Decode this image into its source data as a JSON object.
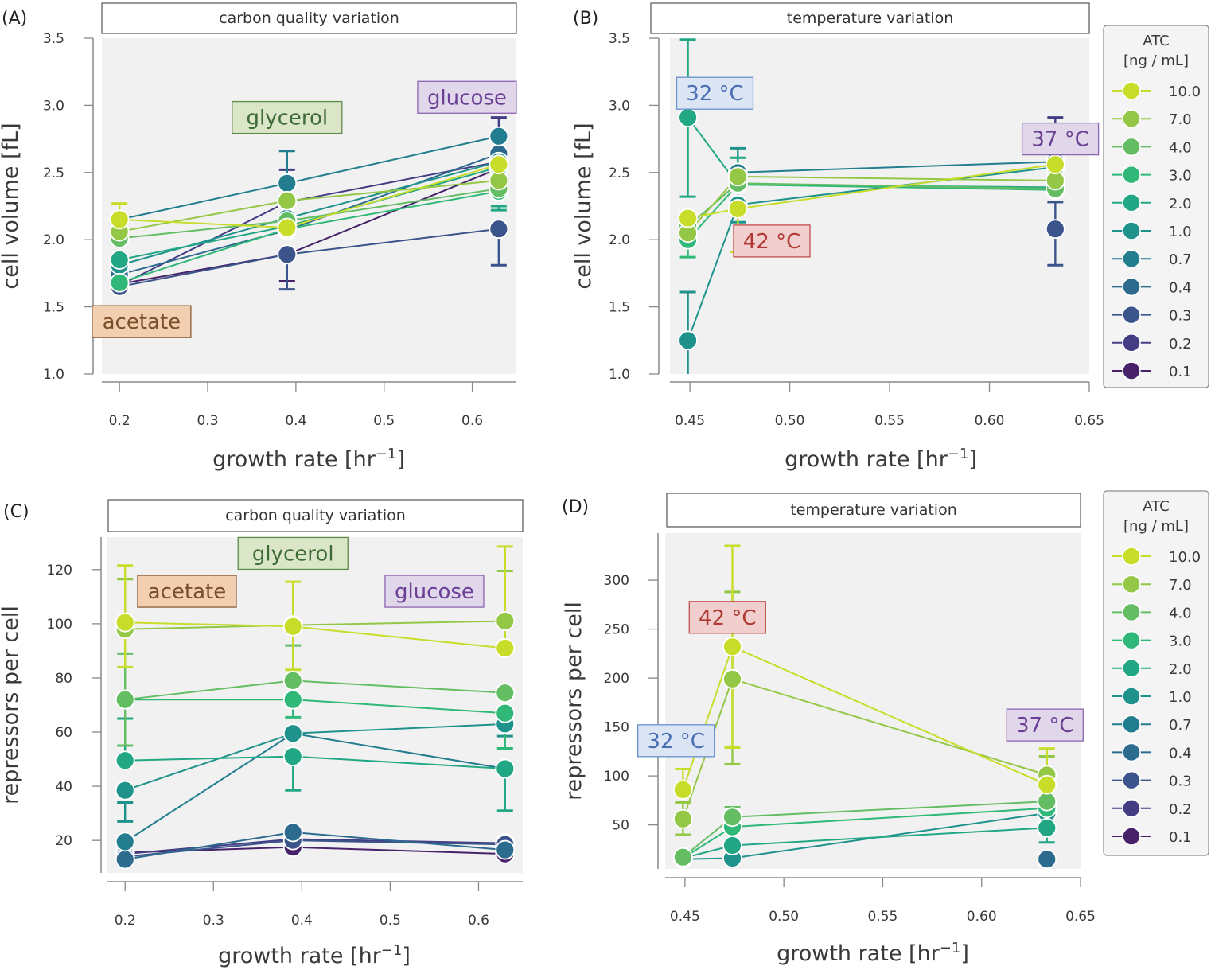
{
  "figure": {
    "legend": {
      "title_line1": "ATC",
      "title_line2": "[ng / mL]",
      "entries": [
        {
          "label": "10.0",
          "color": "#c8dc2a"
        },
        {
          "label": "7.0",
          "color": "#93c745"
        },
        {
          "label": "4.0",
          "color": "#65bd63"
        },
        {
          "label": "3.0",
          "color": "#30b878"
        },
        {
          "label": "2.0",
          "color": "#22a784"
        },
        {
          "label": "1.0",
          "color": "#1f928c"
        },
        {
          "label": "0.7",
          "color": "#227e8e"
        },
        {
          "label": "0.4",
          "color": "#2c6a8e"
        },
        {
          "label": "0.3",
          "color": "#3b548c"
        },
        {
          "label": "0.2",
          "color": "#433d84"
        },
        {
          "label": "0.1",
          "color": "#472269"
        }
      ]
    }
  },
  "chart_data": [
    {
      "panel": "(A)",
      "type": "line",
      "title": "carbon quality variation",
      "xlabel": "growth rate [hr⁻¹]",
      "ylabel": "cell volume [fL]",
      "xlim": [
        0.18,
        0.65
      ],
      "ylim": [
        1.0,
        3.5
      ],
      "xticks": [
        "0.2",
        "0.3",
        "0.4",
        "0.5",
        "0.6"
      ],
      "xtick_values": [
        0.2,
        0.3,
        0.4,
        0.5,
        0.6
      ],
      "yticks": [
        "1.0",
        "1.5",
        "2.0",
        "2.5",
        "3.0",
        "3.5"
      ],
      "ytick_values": [
        1.0,
        1.5,
        2.0,
        2.5,
        3.0,
        3.5
      ],
      "x": [
        0.2,
        0.39,
        0.63
      ],
      "annotations": [
        {
          "text": "acetate",
          "x": 0.225,
          "y": 1.39,
          "fill": "#f1cfb0",
          "stroke": "#8a5a36",
          "color": "#7a4e2a"
        },
        {
          "text": "glycerol",
          "x": 0.39,
          "y": 2.91,
          "fill": "#dbe6c9",
          "stroke": "#5e8a4a",
          "color": "#3e6b35"
        },
        {
          "text": "glucose",
          "x": 0.594,
          "y": 3.06,
          "fill": "#e0d8ea",
          "stroke": "#8c64b0",
          "color": "#6a3f95"
        }
      ],
      "series": [
        {
          "name": "10.0",
          "values": [
            2.15,
            2.09,
            2.56
          ],
          "err": [
            [
              2.27,
              2.15
            ],
            null,
            null
          ]
        },
        {
          "name": "7.0",
          "values": [
            2.06,
            2.29,
            2.44
          ],
          "err": null
        },
        {
          "name": "4.0",
          "values": [
            2.01,
            2.14,
            2.38
          ],
          "err": null
        },
        {
          "name": "3.0",
          "values": [
            1.68,
            2.08,
            2.36
          ],
          "err": null
        },
        {
          "name": "2.0",
          "values": [
            1.85,
            2.1,
            2.54
          ],
          "err": [
            null,
            null,
            [
              2.22,
              2.25
            ]
          ]
        },
        {
          "name": "1.0",
          "values": [
            1.81,
            2.16,
            2.58
          ],
          "err": null
        },
        {
          "name": "0.7",
          "values": [
            2.15,
            2.42,
            2.77
          ],
          "err": [
            null,
            [
              2.66,
              2.42
            ],
            null
          ]
        },
        {
          "name": "0.4",
          "values": [
            1.74,
            2.07,
            2.64
          ],
          "err": null
        },
        {
          "name": "0.3",
          "values": [
            1.65,
            1.89,
            2.08
          ],
          "err": [
            null,
            [
              1.89,
              1.63
            ],
            [
              2.08,
              1.81
            ]
          ]
        },
        {
          "name": "0.2",
          "values": [
            1.66,
            2.28,
            2.58
          ],
          "err": [
            null,
            [
              2.52,
              2.28
            ],
            [
              2.91,
              2.58
            ]
          ]
        },
        {
          "name": "0.1",
          "values": [
            1.67,
            1.89,
            2.53
          ],
          "err": [
            null,
            [
              1.89,
              1.69
            ],
            null
          ]
        }
      ]
    },
    {
      "panel": "(B)",
      "type": "line",
      "title": "temperature variation",
      "xlabel": "growth rate [hr⁻¹]",
      "ylabel": "cell volume [fL]",
      "xlim": [
        0.44,
        0.65
      ],
      "ylim": [
        1.0,
        3.5
      ],
      "xticks": [
        "0.45",
        "0.50",
        "0.55",
        "0.60",
        "0.65"
      ],
      "xtick_values": [
        0.45,
        0.5,
        0.55,
        0.6,
        0.65
      ],
      "yticks": [
        "1.0",
        "1.5",
        "2.0",
        "2.5",
        "3.0",
        "3.5"
      ],
      "ytick_values": [
        1.0,
        1.5,
        2.0,
        2.5,
        3.0,
        3.5
      ],
      "x": [
        0.449,
        0.474,
        0.633
      ],
      "annotations": [
        {
          "text": "32 °C",
          "x": 0.4625,
          "y": 3.09,
          "fill": "#dbe5f4",
          "stroke": "#6a8fcf",
          "color": "#4a6fb5"
        },
        {
          "text": "42 °C",
          "x": 0.491,
          "y": 1.99,
          "fill": "#f2cfcf",
          "stroke": "#c0504d",
          "color": "#b03a33"
        },
        {
          "text": "37 °C",
          "x": 0.6355,
          "y": 2.75,
          "fill": "#e0d8ea",
          "stroke": "#8c64b0",
          "color": "#6a3f95"
        }
      ],
      "series": [
        {
          "name": "10.0",
          "values": [
            2.16,
            2.23,
            2.56
          ],
          "err": [
            null,
            [
              2.23,
              1.91
            ],
            null
          ]
        },
        {
          "name": "7.0",
          "values": [
            2.05,
            2.47,
            2.44
          ],
          "err": null
        },
        {
          "name": "4.0",
          "values": [
            2.1,
            2.42,
            2.38
          ],
          "err": null
        },
        {
          "name": "3.0",
          "values": [
            2.0,
            2.41,
            2.37
          ],
          "err": [
            [
              2.0,
              1.87
            ],
            null,
            null
          ]
        },
        {
          "name": "2.0",
          "values": [
            2.91,
            2.41,
            2.39
          ],
          "err": [
            [
              3.49,
              2.32
            ],
            [
              2.61,
              2.41
            ],
            null
          ]
        },
        {
          "name": "1.0",
          "values": [
            1.25,
            2.26,
            2.54
          ],
          "err": [
            [
              1.61,
              1.0
            ],
            [
              2.68,
              2.13
            ],
            null
          ]
        },
        {
          "name": "0.7",
          "values": [
            null,
            2.5,
            2.58
          ],
          "err": null
        },
        {
          "name": "0.3",
          "values": [
            null,
            null,
            2.08
          ],
          "err": [
            null,
            null,
            [
              2.28,
              1.81
            ]
          ]
        },
        {
          "name": "0.2",
          "values": [
            null,
            null,
            2.57
          ],
          "err": [
            null,
            null,
            [
              2.91,
              2.57
            ]
          ]
        }
      ]
    },
    {
      "panel": "(C)",
      "type": "line",
      "title": "carbon quality variation",
      "xlabel": "growth rate [hr⁻¹]",
      "ylabel": "repressors per cell",
      "xlim": [
        0.18,
        0.65
      ],
      "ylim": [
        8,
        132
      ],
      "xticks": [
        "0.2",
        "0.3",
        "0.4",
        "0.5",
        "0.6"
      ],
      "xtick_values": [
        0.2,
        0.3,
        0.4,
        0.5,
        0.6
      ],
      "yticks": [
        "20",
        "40",
        "60",
        "80",
        "100",
        "120"
      ],
      "ytick_values": [
        20,
        40,
        60,
        80,
        100,
        120
      ],
      "x": [
        0.2,
        0.39,
        0.63
      ],
      "annotations": [
        {
          "text": "acetate",
          "x": 0.27,
          "y": 112,
          "fill": "#f1cfb0",
          "stroke": "#8a5a36",
          "color": "#7a4e2a"
        },
        {
          "text": "glycerol",
          "x": 0.39,
          "y": 126,
          "fill": "#dbe6c9",
          "stroke": "#5e8a4a",
          "color": "#3e6b35"
        },
        {
          "text": "glucose",
          "x": 0.55,
          "y": 112,
          "fill": "#e0d8ea",
          "stroke": "#8c64b0",
          "color": "#6a3f95"
        }
      ],
      "series": [
        {
          "name": "10.0",
          "values": [
            100.5,
            99,
            91
          ],
          "err": [
            [
              121.5,
              84
            ],
            [
              115.5,
              83
            ],
            [
              128.5,
              91
            ]
          ]
        },
        {
          "name": "7.0",
          "values": [
            98,
            99.5,
            101
          ],
          "err": [
            [
              116.5,
              98
            ],
            null,
            [
              119.5,
              101
            ]
          ]
        },
        {
          "name": "4.0",
          "values": [
            72,
            79,
            74.5
          ],
          "err": [
            [
              89,
              55
            ],
            [
              92,
              79
            ],
            null
          ]
        },
        {
          "name": "3.0",
          "values": [
            72,
            72,
            67
          ],
          "err": [
            null,
            [
              65.5,
              72
            ],
            [
              54,
              67
            ]
          ]
        },
        {
          "name": "2.0",
          "values": [
            49.5,
            51,
            46.5
          ],
          "err": [
            [
              65,
              49.5
            ],
            [
              38.5,
              51
            ],
            [
              31,
              46.5
            ]
          ]
        },
        {
          "name": "1.0",
          "values": [
            38.5,
            59.5,
            63
          ],
          "err": [
            [
              34,
              27
            ],
            null,
            [
              58.5,
              63
            ]
          ]
        },
        {
          "name": "0.7",
          "values": [
            19.5,
            59.5,
            46.5
          ],
          "err": null
        },
        {
          "name": "0.4",
          "values": [
            13,
            23,
            16.5
          ],
          "err": null
        },
        {
          "name": "0.3",
          "values": [
            14,
            20,
            18.5
          ],
          "err": null
        },
        {
          "name": "0.2",
          "values": [
            15,
            20.5,
            19
          ],
          "err": null
        },
        {
          "name": "0.1",
          "values": [
            15.5,
            17.5,
            15
          ],
          "err": null
        }
      ]
    },
    {
      "panel": "(D)",
      "type": "line",
      "title": "temperature variation",
      "xlabel": "growth rate [hr⁻¹]",
      "ylabel": "repressors per cell",
      "xlim": [
        0.44,
        0.65
      ],
      "ylim": [
        5,
        348
      ],
      "xticks": [
        "0.45",
        "0.50",
        "0.55",
        "0.60",
        "0.65"
      ],
      "xtick_values": [
        0.45,
        0.5,
        0.55,
        0.6,
        0.65
      ],
      "yticks": [
        "50",
        "100",
        "150",
        "200",
        "250",
        "300"
      ],
      "ytick_values": [
        50,
        100,
        150,
        200,
        250,
        300
      ],
      "x": [
        0.449,
        0.474,
        0.633
      ],
      "annotations": [
        {
          "text": "42 °C",
          "x": 0.4715,
          "y": 262,
          "fill": "#f2cfcf",
          "stroke": "#c0504d",
          "color": "#b03a33"
        },
        {
          "text": "32 °C",
          "x": 0.4455,
          "y": 136,
          "fill": "#dbe5f4",
          "stroke": "#6a8fcf",
          "color": "#4a6fb5"
        },
        {
          "text": "37 °C",
          "x": 0.632,
          "y": 152,
          "fill": "#e0d8ea",
          "stroke": "#8c64b0",
          "color": "#6a3f95"
        }
      ],
      "series": [
        {
          "name": "10.0",
          "values": [
            86,
            232,
            91
          ],
          "err": [
            [
              107,
              86
            ],
            [
              335,
              129
            ],
            [
              128,
              91
            ]
          ]
        },
        {
          "name": "7.0",
          "values": [
            56,
            199,
            101
          ],
          "err": [
            [
              73,
              40
            ],
            [
              288,
              112
            ],
            [
              120,
              101
            ]
          ]
        },
        {
          "name": "4.0",
          "values": [
            17,
            58,
            74
          ],
          "err": [
            null,
            [
              68,
              58
            ],
            null
          ]
        },
        {
          "name": "3.0",
          "values": [
            16,
            48,
            67
          ],
          "err": null
        },
        {
          "name": "2.0",
          "values": [
            16,
            29,
            47
          ],
          "err": [
            null,
            null,
            [
              47,
              32
            ]
          ]
        },
        {
          "name": "1.0",
          "values": [
            15,
            16,
            62
          ],
          "err": null
        },
        {
          "name": "0.4",
          "values": [
            null,
            null,
            15
          ],
          "err": null
        }
      ]
    }
  ]
}
